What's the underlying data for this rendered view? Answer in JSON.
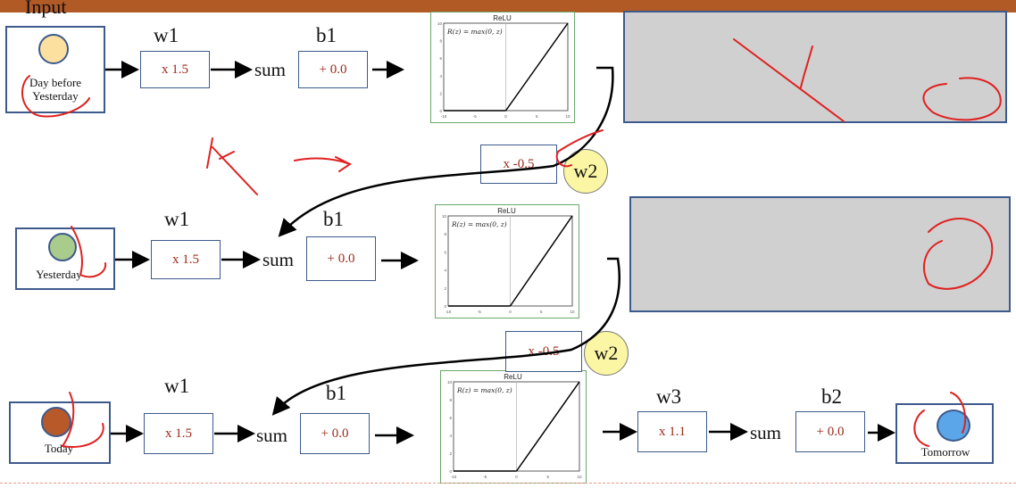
{
  "input_label": "Input",
  "rows": [
    {
      "input": "Day before Yesterday",
      "w_label": "w1",
      "w_value": "x 1.5",
      "sum": "sum",
      "b_label": "b1",
      "b_value": "+ 0.0"
    },
    {
      "input": "Yesterday",
      "w_label": "w1",
      "w_value": "x 1.5",
      "sum": "sum",
      "b_label": "b1",
      "b_value": "+ 0.0"
    },
    {
      "input": "Today",
      "w_label": "w1",
      "w_value": "x 1.5",
      "sum": "sum",
      "b_label": "b1",
      "b_value": "+ 0.0"
    }
  ],
  "relu": {
    "title": "ReLU",
    "formula": "R(z) = max(0, z)",
    "ticks": [
      "-10",
      "-5",
      "0",
      "5",
      "10"
    ],
    "yticks": [
      "0",
      "2",
      "4",
      "6",
      "8",
      "10"
    ]
  },
  "recurrent": [
    {
      "value": "x -0.5",
      "label": "w2"
    },
    {
      "value": "x -0.5",
      "label": "w2"
    }
  ],
  "output": {
    "w_label": "w3",
    "w_value": "x 1.1",
    "sum": "sum",
    "b_label": "b2",
    "b_value": "+ 0.0",
    "node": "Tomorrow"
  },
  "colors": {
    "header_bar": "#b15a26",
    "node_day_before": "#fbe0a0",
    "node_yesterday": "#a9cc8d",
    "node_today": "#b8592a",
    "node_tomorrow": "#5aa6e8",
    "ink": "#e02020"
  }
}
